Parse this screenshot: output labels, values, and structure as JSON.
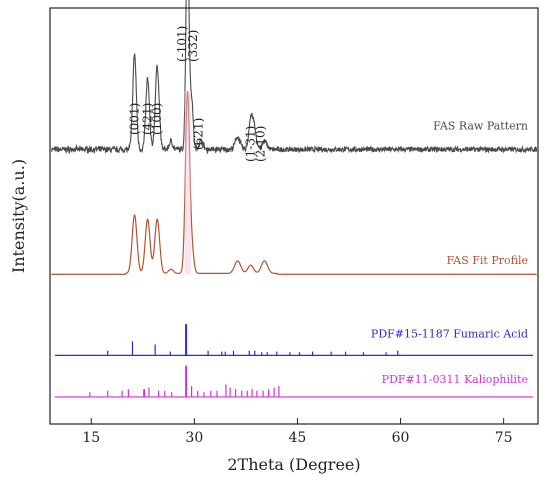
{
  "chart_data": {
    "type": "line",
    "xlabel": "2Theta (Degree)",
    "ylabel": "Intensity(a.u.)",
    "xlim": [
      9,
      80
    ],
    "x_ticks": [
      15,
      30,
      45,
      60,
      75
    ],
    "tick_labels": [
      "15",
      "30",
      "45",
      "60",
      "75"
    ],
    "series": [
      {
        "name": "FAS Raw Pattern",
        "color": "#4a4a4a",
        "baseline": 0.66,
        "peaks": [
          {
            "x": 21.3,
            "h": 0.23,
            "w": 0.26
          },
          {
            "x": 23.2,
            "h": 0.17,
            "w": 0.26
          },
          {
            "x": 24.6,
            "h": 0.2,
            "w": 0.28
          },
          {
            "x": 26.6,
            "h": 0.02,
            "w": 0.25
          },
          {
            "x": 29.0,
            "h": 0.54,
            "w": 0.22
          },
          {
            "x": 29.6,
            "h": 0.12,
            "w": 0.22
          },
          {
            "x": 31.0,
            "h": 0.02,
            "w": 0.3
          },
          {
            "x": 36.3,
            "h": 0.03,
            "w": 0.35
          },
          {
            "x": 38.2,
            "h": 0.07,
            "w": 0.28
          },
          {
            "x": 38.7,
            "h": 0.05,
            "w": 0.28
          },
          {
            "x": 40.2,
            "h": 0.02,
            "w": 0.35
          }
        ]
      },
      {
        "name": "FAS Fit Profile",
        "color": "#b5532e",
        "baseline": 0.36,
        "peaks": [
          {
            "x": 21.3,
            "h": 0.14,
            "w": 0.35
          },
          {
            "x": 23.2,
            "h": 0.13,
            "w": 0.35
          },
          {
            "x": 24.6,
            "h": 0.13,
            "w": 0.35
          },
          {
            "x": 26.6,
            "h": 0.01,
            "w": 0.35
          },
          {
            "x": 29.0,
            "h": 0.43,
            "w": 0.3
          },
          {
            "x": 29.6,
            "h": 0.06,
            "w": 0.3
          },
          {
            "x": 36.3,
            "h": 0.03,
            "w": 0.45
          },
          {
            "x": 38.2,
            "h": 0.02,
            "w": 0.4
          },
          {
            "x": 40.2,
            "h": 0.03,
            "w": 0.45
          }
        ]
      }
    ],
    "peak_labels": [
      {
        "text": "(001)",
        "x": 21.3
      },
      {
        "text": "(421)",
        "x": 23.2
      },
      {
        "text": "(100)",
        "x": 24.6
      },
      {
        "text": "(-101)",
        "x": 28.2
      },
      {
        "text": "(332)",
        "x": 29.8
      },
      {
        "text": "(621)",
        "x": 30.6
      },
      {
        "text": "(1-31)",
        "x": 38.2
      },
      {
        "text": "(2-10)",
        "x": 39.6
      }
    ],
    "reference_patterns": [
      {
        "name": "PDF#15-1187  Fumaric Acid",
        "color": "#2b2bd4",
        "lines": [
          {
            "x": 17.4,
            "h": 0.15
          },
          {
            "x": 21.0,
            "h": 0.45
          },
          {
            "x": 24.3,
            "h": 0.35
          },
          {
            "x": 26.5,
            "h": 0.12
          },
          {
            "x": 28.8,
            "h": 1.0
          },
          {
            "x": 32.0,
            "h": 0.15
          },
          {
            "x": 34.0,
            "h": 0.12
          },
          {
            "x": 34.5,
            "h": 0.12
          },
          {
            "x": 35.7,
            "h": 0.15
          },
          {
            "x": 38.0,
            "h": 0.15
          },
          {
            "x": 38.8,
            "h": 0.15
          },
          {
            "x": 39.8,
            "h": 0.1
          },
          {
            "x": 40.6,
            "h": 0.1
          },
          {
            "x": 42.0,
            "h": 0.12
          },
          {
            "x": 43.9,
            "h": 0.1
          },
          {
            "x": 45.3,
            "h": 0.1
          },
          {
            "x": 47.2,
            "h": 0.12
          },
          {
            "x": 49.9,
            "h": 0.12
          },
          {
            "x": 52.0,
            "h": 0.12
          },
          {
            "x": 54.6,
            "h": 0.1
          },
          {
            "x": 57.9,
            "h": 0.1
          },
          {
            "x": 59.6,
            "h": 0.15
          }
        ]
      },
      {
        "name": "PDF#11-0311  Kaliophilite",
        "color": "#d62fd6",
        "lines": [
          {
            "x": 14.8,
            "h": 0.15
          },
          {
            "x": 17.4,
            "h": 0.2
          },
          {
            "x": 19.5,
            "h": 0.2
          },
          {
            "x": 20.4,
            "h": 0.25
          },
          {
            "x": 22.7,
            "h": 0.25
          },
          {
            "x": 23.4,
            "h": 0.3
          },
          {
            "x": 24.8,
            "h": 0.2
          },
          {
            "x": 25.7,
            "h": 0.2
          },
          {
            "x": 26.7,
            "h": 0.15
          },
          {
            "x": 28.8,
            "h": 1.0
          },
          {
            "x": 29.6,
            "h": 0.35
          },
          {
            "x": 30.5,
            "h": 0.2
          },
          {
            "x": 31.4,
            "h": 0.15
          },
          {
            "x": 32.4,
            "h": 0.2
          },
          {
            "x": 33.3,
            "h": 0.2
          },
          {
            "x": 34.6,
            "h": 0.4
          },
          {
            "x": 35.2,
            "h": 0.3
          },
          {
            "x": 36.0,
            "h": 0.25
          },
          {
            "x": 36.9,
            "h": 0.2
          },
          {
            "x": 37.7,
            "h": 0.2
          },
          {
            "x": 38.4,
            "h": 0.25
          },
          {
            "x": 39.1,
            "h": 0.2
          },
          {
            "x": 40.0,
            "h": 0.2
          },
          {
            "x": 40.8,
            "h": 0.25
          },
          {
            "x": 41.6,
            "h": 0.3
          },
          {
            "x": 42.3,
            "h": 0.35
          }
        ]
      }
    ],
    "grid": false,
    "legend": "inline right labels"
  }
}
